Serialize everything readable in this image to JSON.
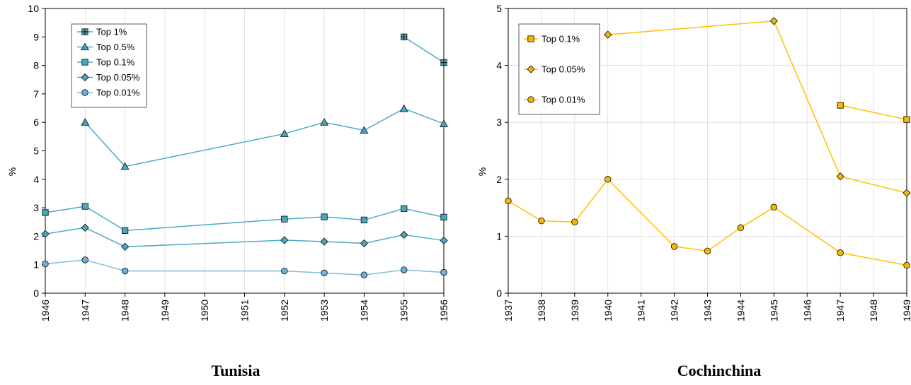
{
  "chart_data": [
    {
      "type": "line",
      "caption": "Tunisia",
      "ylabel": "%",
      "ylim": [
        0,
        10
      ],
      "yticks": [
        "0",
        "1",
        "2",
        "3",
        "4",
        "5",
        "6",
        "7",
        "8",
        "9",
        "10"
      ],
      "categories": [
        "1946",
        "1947",
        "1948",
        "1949",
        "1950",
        "1951",
        "1952",
        "1953",
        "1954",
        "1955",
        "1956"
      ],
      "grid": "vertical",
      "legend": "top-left",
      "series": [
        {
          "name": "Top 1%",
          "color": "#4aabc6",
          "marker": "plus-square",
          "values": [
            null,
            null,
            null,
            null,
            null,
            null,
            null,
            null,
            null,
            9.0,
            8.1
          ]
        },
        {
          "name": "Top 0.5%",
          "color": "#4aabc6",
          "marker": "triangle",
          "values": [
            null,
            6.0,
            4.45,
            null,
            null,
            null,
            5.6,
            6.0,
            5.72,
            6.48,
            5.95
          ]
        },
        {
          "name": "Top 0.1%",
          "color": "#4aabc6",
          "marker": "square",
          "values": [
            2.83,
            3.05,
            2.2,
            null,
            null,
            null,
            2.6,
            2.68,
            2.57,
            2.97,
            2.67
          ]
        },
        {
          "name": "Top 0.05%",
          "color": "#4aabc6",
          "marker": "diamond",
          "values": [
            2.08,
            2.3,
            1.63,
            null,
            null,
            null,
            1.86,
            1.81,
            1.75,
            2.05,
            1.85
          ]
        },
        {
          "name": "Top 0.01%",
          "color": "#7fbedb",
          "marker": "circle",
          "values": [
            1.03,
            1.17,
            0.78,
            null,
            null,
            null,
            0.78,
            0.71,
            0.64,
            0.82,
            0.73
          ]
        }
      ]
    },
    {
      "type": "line",
      "caption": "Cochinchina",
      "ylabel": "%",
      "ylim": [
        0,
        5
      ],
      "yticks": [
        "0",
        "1",
        "2",
        "3",
        "4",
        "5"
      ],
      "categories": [
        "1937",
        "1938",
        "1939",
        "1940",
        "1941",
        "1942",
        "1943",
        "1944",
        "1945",
        "1946",
        "1947",
        "1948",
        "1949"
      ],
      "grid": "both",
      "legend": "top-left",
      "series": [
        {
          "name": "Top 0.1%",
          "color": "#ffc000",
          "marker": "square",
          "values": [
            null,
            null,
            null,
            null,
            null,
            null,
            null,
            null,
            null,
            null,
            3.3,
            null,
            3.05
          ]
        },
        {
          "name": "Top 0.05%",
          "color": "#ffc000",
          "marker": "diamond",
          "values": [
            null,
            null,
            null,
            4.54,
            null,
            null,
            null,
            null,
            4.78,
            null,
            2.05,
            null,
            1.76
          ]
        },
        {
          "name": "Top 0.01%",
          "color": "#ffc000",
          "marker": "circle",
          "values": [
            1.62,
            1.27,
            1.25,
            2.0,
            null,
            0.82,
            0.74,
            1.15,
            1.51,
            null,
            0.71,
            null,
            0.49
          ]
        }
      ]
    }
  ]
}
